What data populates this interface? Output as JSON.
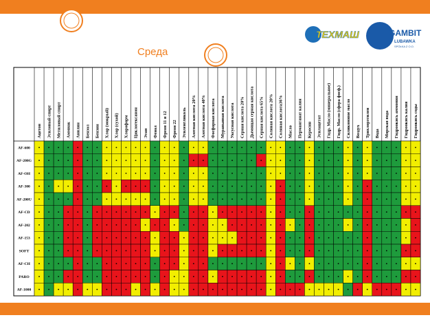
{
  "header": {
    "title": "Среда",
    "logos": [
      "ТЕХМАШ",
      "GAMBIT",
      "LUBAWKA",
      "SPÓŁKA Z O.O."
    ]
  },
  "table": {
    "columns": [
      "Ацетон",
      "Этиловый спирт",
      "Метиловый спирт",
      "Аммиак",
      "Анилин",
      "Бензол",
      "Бензин",
      "Хлор (мокрый)",
      "Хлор (сухой)",
      "Хлороформ",
      "Циклогексанон",
      "Этан",
      "Фенол",
      "Фреон 11 и 12",
      "Фреон 22",
      "Этиленгликоль",
      "Азотная кислота 20%",
      "Азотная кислота 40%",
      "Фосфорная кислота",
      "Муравьиная кислота",
      "Уксусная кислота",
      "Серная кислота 20%",
      "Дымящая серная кислота",
      "Серная кислота 65%",
      "Соляная кислота 20%",
      "Соляная кислота36%",
      "Масло",
      "Перманганат калия",
      "Керосин",
      "Этилацетат",
      "Гидр. Масло (минеральное)",
      "Гидр. Масло (сфера фосф.)",
      "Силиконовое масло",
      "Воздух",
      "Трихлорэтилен",
      "Вода",
      "Морская вода",
      "Гидроокись аммония",
      "Гидроокись калия",
      "Гидроокись соды"
    ],
    "rows": [
      "AF-600",
      "AF-200G",
      "AF-OH",
      "AF-300",
      "AF-200U",
      "AF-CD",
      "AF-202",
      "AF-153",
      "SOFT",
      "AF-CH",
      "PARO",
      "AF-1000"
    ],
    "colors": {
      "G": "#1e9b3c",
      "Y": "#f2ee00",
      "R": "#e8141b"
    },
    "cells": [
      "YGGGRGGYYYYYGYYGYYGGGGGGYYGGYGGGYGYGGGYY",
      "YGGGRGGYYYYYGYYGRRGGGGGRYYGGYGGGYGYGGGYY",
      "YGGGRGGYYYYYGYYGYYGGGGGGYYGGYGGGYGYGGGYY",
      "YGYYRGGRYRRRGYYGYYGGGGGGYRGGYGGGYGRGGGYY",
      "YGGGRGGYYYYYGYYGYYGGGGGGYRGGYGGGYGRGGGYY",
      "YGGRRGRRRRRRYRRGRRYRRRRRYRGGRGGGGGRGGGRR",
      "YGGRRGRRRRRYRRYGRRYYRRRRYRYGRGGGYGRGGGYR",
      "YGGRRGRRRRRRYRRYRRYYYRRRYRGGRGGGGGRGGGYR",
      "YGGRRGRRRRRRYRRYRRYRRRRRYRGGRGGGGGRGGGRR",
      "YGGGRGGRRRRRGRRYRRGGGGGGYRYGYGGGGGRGGGYY",
      "YGGRRGGRRRRRGRYYRRYRRRRRYRGGRGGGYGRGGGRR",
      "YGYYRYYRRRYRYRYYRRRRRRRRYRRRYYYYGRYRRRYY"
    ]
  }
}
